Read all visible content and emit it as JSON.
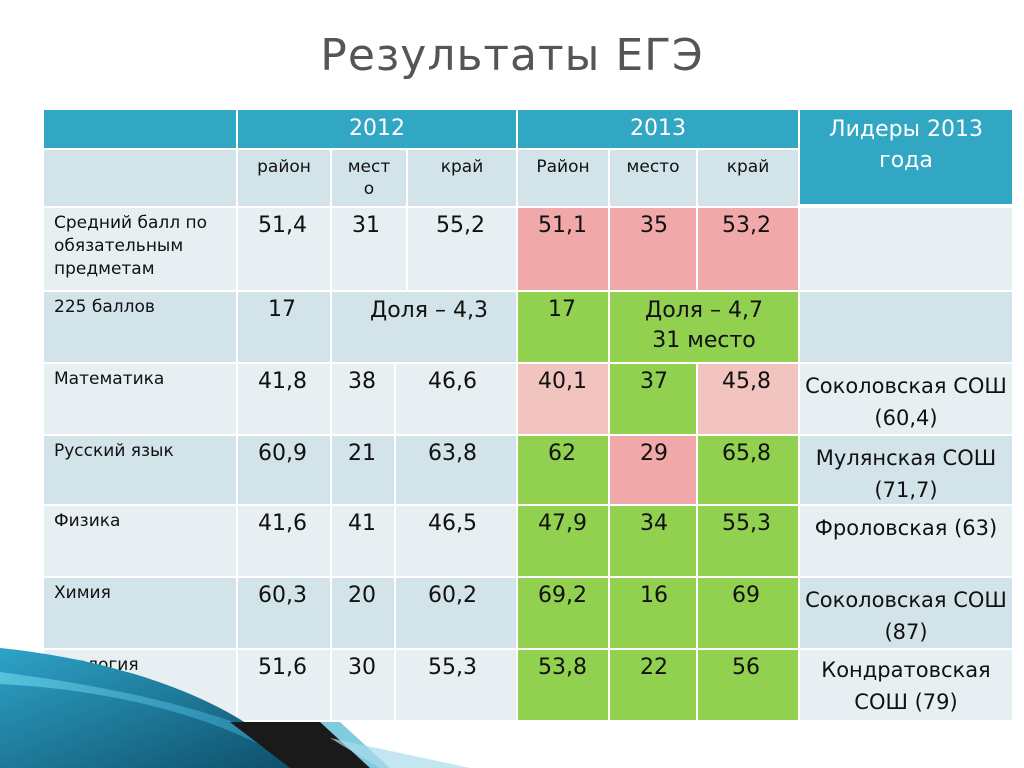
{
  "title": "Результаты ЕГЭ",
  "header": {
    "year_2012": "2012",
    "year_2013": "2013",
    "leaders": "Лидеры 2013 года"
  },
  "subheader": {
    "raion_2012": "район",
    "mesto_2012": "мест\nо",
    "krai_2012": "край",
    "raion_2013": "Район",
    "mesto_2013": "место",
    "krai_2013": "край"
  },
  "rows": [
    {
      "label": "Средний балл по обязательным предметам",
      "r12": "51,4",
      "m12": "31",
      "k12": "55,2",
      "r13": "51,1",
      "m13": "35",
      "k13": "53,2",
      "leader": ""
    },
    {
      "label": "225 баллов",
      "r12": "17",
      "share12": "Доля – 4,3",
      "r13": "17",
      "share13": "Доля – 4,7\n31 место",
      "leader": ""
    },
    {
      "label": "Математика",
      "r12": "41,8",
      "m12": "38",
      "k12": "46,6",
      "r13": "40,1",
      "m13": "37",
      "k13": "45,8",
      "leader": "Соколовская СОШ  (60,4)"
    },
    {
      "label": "Русский язык",
      "r12": "60,9",
      "m12": "21",
      "k12": "63,8",
      "r13": "62",
      "m13": "29",
      "k13": "65,8",
      "leader": "Мулянская СОШ (71,7)"
    },
    {
      "label": "Физика",
      "r12": "41,6",
      "m12": "41",
      "k12": "46,5",
      "r13": "47,9",
      "m13": "34",
      "k13": "55,3",
      "leader": "Фроловская (63)"
    },
    {
      "label": "Химия",
      "r12": "60,3",
      "m12": "20",
      "k12": "60,2",
      "r13": "69,2",
      "m13": "16",
      "k13": "69",
      "leader": "Соколовская СОШ (87)"
    },
    {
      "label": "Биология",
      "r12": "51,6",
      "m12": "30",
      "k12": "55,3",
      "r13": "53,8",
      "m13": "22",
      "k13": "56",
      "leader": "Кондратовская СОШ (79)"
    }
  ],
  "colors": {
    "header": "#31a7c4",
    "light": "#d2e4ea",
    "pale": "#e8eff3",
    "pink": "#f0a8a8",
    "green": "#92d050"
  }
}
